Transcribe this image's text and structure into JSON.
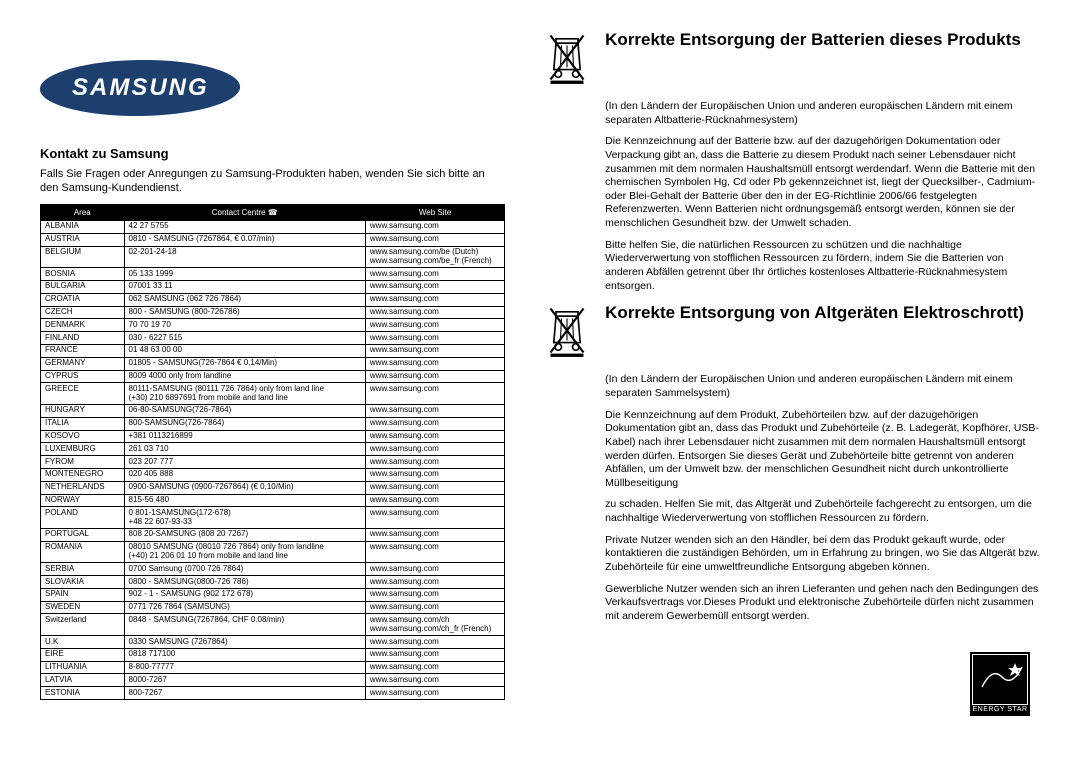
{
  "logo_text": "SAMSUNG",
  "kontakt": {
    "title": "Kontakt zu Samsung",
    "text": "Falls Sie Fragen oder Anregungen zu Samsung-Produkten haben, wenden Sie sich bitte an den Samsung-Kundendienst."
  },
  "table": {
    "headers": {
      "area": "Area",
      "contact": "Contact Centre",
      "web": "Web Site"
    },
    "rows": [
      {
        "a": "ALBANIA",
        "c": "42 27 5755",
        "w": "www.samsung.com"
      },
      {
        "a": "AUSTRIA",
        "c": "0810 - SAMSUNG (7267864, € 0.07/min)",
        "w": "www.samsung.com"
      },
      {
        "a": "BELGIUM",
        "c": "02-201-24-18",
        "w": "www.samsung.com/be (Dutch)\nwww.samsung.com/be_fr (French)"
      },
      {
        "a": "BOSNIA",
        "c": "05 133 1999",
        "w": "www.samsung.com"
      },
      {
        "a": "BULGARIA",
        "c": "07001 33 11",
        "w": "www.samsung.com"
      },
      {
        "a": "CROATIA",
        "c": "062 SAMSUNG (062 726 7864)",
        "w": "www.samsung.com"
      },
      {
        "a": "CZECH",
        "c": "800 - SAMSUNG (800-726786)",
        "w": "www.samsung.com"
      },
      {
        "a": "DENMARK",
        "c": "70 70 19 70",
        "w": "www.samsung.com"
      },
      {
        "a": "FINLAND",
        "c": "030 - 6227 515",
        "w": "www.samsung.com"
      },
      {
        "a": "FRANCE",
        "c": "01 48 63 00 00",
        "w": "www.samsung.com"
      },
      {
        "a": "GERMANY",
        "c": "01805 - SAMSUNG(726-7864 € 0,14/Min)",
        "w": "www.samsung.com"
      },
      {
        "a": "CYPRUS",
        "c": "8009 4000 only from landline",
        "w": "www.samsung.com"
      },
      {
        "a": "GREECE",
        "c": "80111-SAMSUNG (80111 726 7864) only from land line\n(+30) 210 6897691 from mobile and land line",
        "w": "www.samsung.com"
      },
      {
        "a": "HUNGARY",
        "c": "06-80-SAMSUNG(726-7864)",
        "w": "www.samsung.com"
      },
      {
        "a": "ITALIA",
        "c": "800-SAMSUNG(726-7864)",
        "w": "www.samsung.com"
      },
      {
        "a": "KOSOVO",
        "c": "+381 0113216899",
        "w": "www.samsung.com"
      },
      {
        "a": "LUXEMBURG",
        "c": "261 03 710",
        "w": "www.samsung.com"
      },
      {
        "a": "FYROM",
        "c": "023 207 777",
        "w": "www.samsung.com"
      },
      {
        "a": "MONTENEGRO",
        "c": "020 405 888",
        "w": "www.samsung.com"
      },
      {
        "a": "NETHERLANDS",
        "c": "0900-SAMSUNG (0900-7267864) (€ 0,10/Min)",
        "w": "www.samsung.com"
      },
      {
        "a": "NORWAY",
        "c": "815-56 480",
        "w": "www.samsung.com"
      },
      {
        "a": "POLAND",
        "c": "0 801-1SAMSUNG(172-678)\n+48 22 607-93-33",
        "w": "www.samsung.com"
      },
      {
        "a": "PORTUGAL",
        "c": "808 20-SAMSUNG (808 20 7267)",
        "w": "www.samsung.com"
      },
      {
        "a": "ROMANIA",
        "c": "08010 SAMSUNG (08010 726 7864) only from landline\n(+40) 21 206 01 10 from mobile and land line",
        "w": "www.samsung.com"
      },
      {
        "a": "SERBIA",
        "c": "0700 Samsung (0700 726 7864)",
        "w": "www.samsung.com"
      },
      {
        "a": "SLOVAKIA",
        "c": "0800 - SAMSUNG(0800-726 786)",
        "w": "www.samsung.com"
      },
      {
        "a": "SPAIN",
        "c": "902 - 1 - SAMSUNG (902 172 678)",
        "w": "www.samsung.com"
      },
      {
        "a": "SWEDEN",
        "c": "0771 726 7864 (SAMSUNG)",
        "w": "www.samsung.com"
      },
      {
        "a": "Switzerland",
        "c": "0848 - SAMSUNG(7267864, CHF 0.08/min)",
        "w": "www.samsung.com/ch\nwww.samsung.com/ch_fr (French)"
      },
      {
        "a": "U.K",
        "c": "0330 SAMSUNG (7267864)",
        "w": "www.samsung.com"
      },
      {
        "a": "EIRE",
        "c": "0818 717100",
        "w": "www.samsung.com"
      },
      {
        "a": "LITHUANIA",
        "c": "8-800-77777",
        "w": "www.samsung.com"
      },
      {
        "a": "LATVIA",
        "c": "8000-7267",
        "w": "www.samsung.com"
      },
      {
        "a": "ESTONIA",
        "c": "800-7267",
        "w": "www.samsung.com"
      }
    ]
  },
  "battery": {
    "title": "Korrekte Entsorgung der Batterien dieses Produkts",
    "sub": "(In den Ländern der Europäischen Union und anderen europäischen Ländern mit einem separaten Altbatterie-Rücknahmesystem)",
    "p1": "Die Kennzeichnung auf der Batterie bzw. auf der dazugehörigen Dokumentation oder Verpackung gibt an, dass die Batterie zu diesem Produkt nach seiner Lebensdauer nicht zusammen mit dem normalen Haushaltsmüll entsorgt werdendarf. Wenn die Batterie mit den chemischen Symbolen Hg, Cd oder Pb gekennzeichnet ist, liegt der Quecksilber-, Cadmium- oder Blei-Gehalt der Batterie über den in der EG-Richtlinie 2006/66 festgelegten Referenzwerten. Wenn Batterien nicht ordnungsgemäß entsorgt werden, können sie der menschlichen Gesundheit bzw. der Umwelt schaden.",
    "p2": "Bitte helfen Sie, die natürlichen Ressourcen zu schützen und die nachhaltige Wiederverwertung von stofflichen Ressourcen zu fördern, indem Sie die Batterien von anderen Abfällen getrennt über Ihr örtliches kostenloses Altbatterie-Rücknahmesystem entsorgen."
  },
  "weee": {
    "title": "Korrekte Entsorgung von Altgeräten Elektroschrott)",
    "sub": "(In den Ländern der Europäischen Union und anderen europäischen Ländern mit einem separaten Sammelsystem)",
    "p1": "Die Kennzeichnung auf dem Produkt, Zubehörteilen bzw. auf der dazugehörigen Dokumentation gibt an, dass das Produkt und Zubehörteile (z. B. Ladegerät, Kopfhörer, USB-Kabel) nach ihrer Lebensdauer nicht zusammen mit dem normalen Haushaltsmüll entsorgt werden dürfen. Entsorgen Sie dieses Gerät und Zubehörteile bitte getrennt von anderen Abfällen, um der Umwelt bzw. der menschlichen Gesundheit nicht durch unkontrollierte Müllbeseitigung",
    "p2": "zu schaden. Helfen Sie mit, das Altgerät und Zubehörteile fachgerecht zu entsorgen, um die nachhaltige Wiederverwertung von stofflichen Ressourcen zu fördern.",
    "p3": "Private Nutzer wenden sich an den Händler, bei dem das Produkt gekauft wurde, oder kontaktieren die zuständigen Behörden, um in Erfahrung zu bringen, wo Sie das Altgerät bzw. Zubehörteile für eine umweltfreundliche Entsorgung abgeben können.",
    "p4": "Gewerbliche Nutzer wenden sich an ihren Lieferanten und gehen nach den Bedingungen des Verkaufsvertrags vor.Dieses Produkt und elektronische Zubehörteile dürfen nicht zusammen mit anderem Gewerbemüll entsorgt werden."
  },
  "energy_star": "ENERGY STAR"
}
